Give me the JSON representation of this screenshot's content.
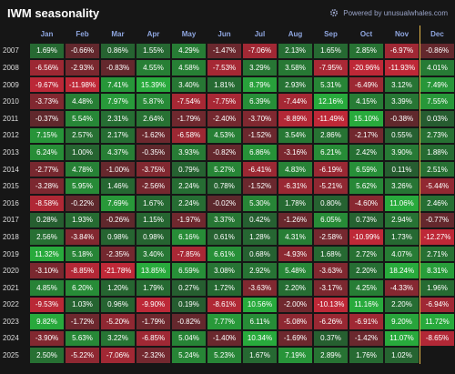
{
  "header": {
    "title": "IWM seasonality",
    "powered": "Powered by unusualwhales.com"
  },
  "table": {
    "columns": [
      "Jan",
      "Feb",
      "Mar",
      "Apr",
      "May",
      "Jun",
      "Jul",
      "Aug",
      "Sep",
      "Oct",
      "Nov",
      "Dec"
    ],
    "rows": [
      {
        "year": "2007",
        "values": [
          "1.69%",
          "-0.66%",
          "0.86%",
          "1.55%",
          "4.29%",
          "-1.47%",
          "-7.06%",
          "2.13%",
          "1.65%",
          "2.85%",
          "-6.97%",
          "-0.86%"
        ]
      },
      {
        "year": "2008",
        "values": [
          "-6.56%",
          "-2.93%",
          "-0.83%",
          "4.55%",
          "4.58%",
          "-7.53%",
          "3.29%",
          "3.58%",
          "-7.95%",
          "-20.96%",
          "-11.93%",
          "4.01%"
        ]
      },
      {
        "year": "2009",
        "values": [
          "-9.67%",
          "-11.98%",
          "7.41%",
          "15.39%",
          "3.40%",
          "1.81%",
          "8.79%",
          "2.93%",
          "5.31%",
          "-6.49%",
          "3.12%",
          "7.49%"
        ]
      },
      {
        "year": "2010",
        "values": [
          "-3.73%",
          "4.48%",
          "7.97%",
          "5.87%",
          "-7.54%",
          "-7.75%",
          "6.39%",
          "-7.44%",
          "12.16%",
          "4.15%",
          "3.39%",
          "7.55%"
        ]
      },
      {
        "year": "2011",
        "values": [
          "-0.37%",
          "5.54%",
          "2.31%",
          "2.64%",
          "-1.79%",
          "-2.40%",
          "-3.70%",
          "-8.89%",
          "-11.49%",
          "15.10%",
          "-0.38%",
          "0.03%"
        ]
      },
      {
        "year": "2012",
        "values": [
          "7.15%",
          "2.57%",
          "2.17%",
          "-1.62%",
          "-6.58%",
          "4.53%",
          "-1.52%",
          "3.54%",
          "2.86%",
          "-2.17%",
          "0.55%",
          "2.73%"
        ]
      },
      {
        "year": "2013",
        "values": [
          "6.24%",
          "1.00%",
          "4.37%",
          "-0.35%",
          "3.93%",
          "-0.82%",
          "6.86%",
          "-3.16%",
          "6.21%",
          "2.42%",
          "3.90%",
          "1.88%"
        ]
      },
      {
        "year": "2014",
        "values": [
          "-2.77%",
          "4.78%",
          "-1.00%",
          "-3.75%",
          "0.79%",
          "5.27%",
          "-6.41%",
          "4.83%",
          "-6.19%",
          "6.59%",
          "0.11%",
          "2.51%"
        ]
      },
      {
        "year": "2015",
        "values": [
          "-3.28%",
          "5.95%",
          "1.46%",
          "-2.56%",
          "2.24%",
          "0.78%",
          "-1.52%",
          "-6.31%",
          "-5.21%",
          "5.62%",
          "3.26%",
          "-5.44%"
        ]
      },
      {
        "year": "2016",
        "values": [
          "-8.58%",
          "-0.22%",
          "7.69%",
          "1.67%",
          "2.24%",
          "-0.02%",
          "5.30%",
          "1.78%",
          "0.80%",
          "-4.60%",
          "11.06%",
          "2.46%"
        ]
      },
      {
        "year": "2017",
        "values": [
          "0.28%",
          "1.93%",
          "-0.26%",
          "1.15%",
          "-1.97%",
          "3.37%",
          "0.42%",
          "-1.26%",
          "6.05%",
          "0.73%",
          "2.94%",
          "-0.77%"
        ]
      },
      {
        "year": "2018",
        "values": [
          "2.56%",
          "-3.84%",
          "0.98%",
          "0.98%",
          "6.16%",
          "0.61%",
          "1.28%",
          "4.31%",
          "-2.58%",
          "-10.99%",
          "1.73%",
          "-12.27%"
        ]
      },
      {
        "year": "2019",
        "values": [
          "11.32%",
          "5.18%",
          "-2.35%",
          "3.40%",
          "-7.85%",
          "6.61%",
          "0.68%",
          "-4.93%",
          "1.68%",
          "2.72%",
          "4.07%",
          "2.71%"
        ]
      },
      {
        "year": "2020",
        "values": [
          "-3.10%",
          "-8.85%",
          "-21.78%",
          "13.85%",
          "6.59%",
          "3.08%",
          "2.92%",
          "5.48%",
          "-3.63%",
          "2.20%",
          "18.24%",
          "8.31%"
        ]
      },
      {
        "year": "2021",
        "values": [
          "4.85%",
          "6.20%",
          "1.20%",
          "1.79%",
          "0.27%",
          "1.72%",
          "-3.63%",
          "2.20%",
          "-3.17%",
          "4.25%",
          "-4.33%",
          "1.96%"
        ]
      },
      {
        "year": "2022",
        "values": [
          "-9.53%",
          "1.03%",
          "0.96%",
          "-9.90%",
          "0.19%",
          "-8.61%",
          "10.56%",
          "-2.00%",
          "-10.13%",
          "11.16%",
          "2.20%",
          "-6.94%"
        ]
      },
      {
        "year": "2023",
        "values": [
          "9.82%",
          "-1.72%",
          "-5.20%",
          "-1.79%",
          "-0.82%",
          "7.77%",
          "6.11%",
          "-5.08%",
          "-6.26%",
          "-6.91%",
          "9.20%",
          "11.72%"
        ]
      },
      {
        "year": "2024",
        "values": [
          "-3.90%",
          "5.63%",
          "3.22%",
          "-6.85%",
          "5.04%",
          "-1.40%",
          "10.34%",
          "-1.69%",
          "0.37%",
          "-1.42%",
          "11.07%",
          "-8.65%"
        ]
      },
      {
        "year": "2025",
        "values": [
          "2.50%",
          "-5.22%",
          "-7.06%",
          "-2.32%",
          "5.24%",
          "5.23%",
          "1.67%",
          "7.19%",
          "2.89%",
          "1.76%",
          "1.02%",
          null
        ]
      }
    ]
  }
}
